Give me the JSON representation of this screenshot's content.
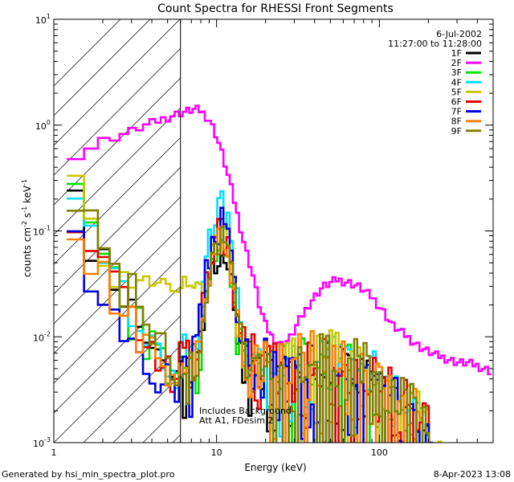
{
  "chart_data": {
    "type": "line",
    "title": "Count Spectra for RHESSI Front Segments",
    "xlabel": "Energy (keV)",
    "ylabel_main": "counts cm",
    "ylabel_sup1": "-2",
    "ylabel_mid": " s",
    "ylabel_sup2": "-1",
    "ylabel_end": " keV",
    "ylabel_sup3": "-1",
    "x_scale": "log",
    "y_scale": "log",
    "xlim": [
      1,
      500
    ],
    "ylim": [
      0.001,
      10
    ],
    "x_ticks": [
      {
        "value": 1,
        "label": "1"
      },
      {
        "value": 10,
        "label": "10"
      },
      {
        "value": 100,
        "label": "100"
      }
    ],
    "y_ticks": [
      {
        "value": 0.001,
        "base": "10",
        "exp": "-3"
      },
      {
        "value": 0.01,
        "base": "10",
        "exp": "-2"
      },
      {
        "value": 0.1,
        "base": "10",
        "exp": "-1"
      },
      {
        "value": 1,
        "base": "10",
        "exp": "0"
      },
      {
        "value": 10,
        "base": "10",
        "exp": "1"
      }
    ],
    "attenuated_region_max_keV": 6,
    "date": "6-Jul-2002",
    "time_range": "11:27:00 to 11:28:00",
    "annotation_line1": "Includes Background",
    "annotation_line2": "Att A1, FDesim 2",
    "legend_position": "top-right",
    "series": [
      {
        "name": "1F",
        "color": "#000000",
        "seed": 11,
        "peak": 0.055,
        "low": 0.23,
        "tail_amp": 1.0
      },
      {
        "name": "2F",
        "color": "#ff00ff",
        "smooth": true,
        "points": [
          [
            1.2,
            0.46
          ],
          [
            1.4,
            0.55
          ],
          [
            1.7,
            0.62
          ],
          [
            2,
            0.72
          ],
          [
            2.5,
            0.8
          ],
          [
            3,
            0.88
          ],
          [
            3.5,
            0.98
          ],
          [
            4,
            1.05
          ],
          [
            5,
            1.2
          ],
          [
            6,
            1.32
          ],
          [
            7,
            1.4
          ],
          [
            7.5,
            1.42
          ],
          [
            8,
            1.38
          ],
          [
            9,
            1.15
          ],
          [
            10,
            0.8
          ],
          [
            11,
            0.5
          ],
          [
            12,
            0.3
          ],
          [
            13,
            0.18
          ],
          [
            14,
            0.11
          ],
          [
            15,
            0.07
          ],
          [
            16,
            0.05
          ],
          [
            17,
            0.035
          ],
          [
            18,
            0.022
          ],
          [
            20,
            0.013
          ],
          [
            22,
            0.01
          ],
          [
            25,
            0.0085
          ],
          [
            28,
            0.0095
          ],
          [
            32,
            0.014
          ],
          [
            38,
            0.022
          ],
          [
            45,
            0.03
          ],
          [
            55,
            0.035
          ],
          [
            65,
            0.033
          ],
          [
            75,
            0.03
          ],
          [
            90,
            0.024
          ],
          [
            105,
            0.018
          ],
          [
            120,
            0.013
          ],
          [
            150,
            0.01
          ],
          [
            180,
            0.008
          ],
          [
            220,
            0.0068
          ],
          [
            260,
            0.0063
          ],
          [
            300,
            0.0058
          ],
          [
            350,
            0.0057
          ],
          [
            400,
            0.0054
          ],
          [
            450,
            0.005
          ],
          [
            480,
            0.0048
          ]
        ]
      },
      {
        "name": "3F",
        "color": "#00e000",
        "seed": 23,
        "peak": 0.06,
        "low": 0.26,
        "tail_amp": 1.1
      },
      {
        "name": "4F",
        "color": "#00e0ff",
        "seed": 37,
        "peak": 0.17,
        "low": 0.24,
        "tail_amp": 1.2
      },
      {
        "name": "5F",
        "color": "#c8c800",
        "seed": 41,
        "peak": 0.09,
        "low": 0.3,
        "tail_amp": 1.3,
        "floor": 0.032
      },
      {
        "name": "6F",
        "color": "#e00000",
        "seed": 53,
        "peak": 0.1,
        "low": 0.27,
        "tail_amp": 1.15
      },
      {
        "name": "7F",
        "color": "#0000e0",
        "seed": 67,
        "peak": 0.12,
        "low": 0.11,
        "tail_amp": 1.0
      },
      {
        "name": "8F",
        "color": "#ff8000",
        "seed": 71,
        "peak": 0.08,
        "low": 0.21,
        "tail_amp": 1.2
      },
      {
        "name": "9F",
        "color": "#808000",
        "seed": 83,
        "peak": 0.085,
        "low": 0.37,
        "tail_amp": 1.25
      }
    ]
  },
  "footer": {
    "generated": "Generated by hsi_min_spectra_plot.pro",
    "timestamp": "8-Apr-2023 13:08"
  }
}
